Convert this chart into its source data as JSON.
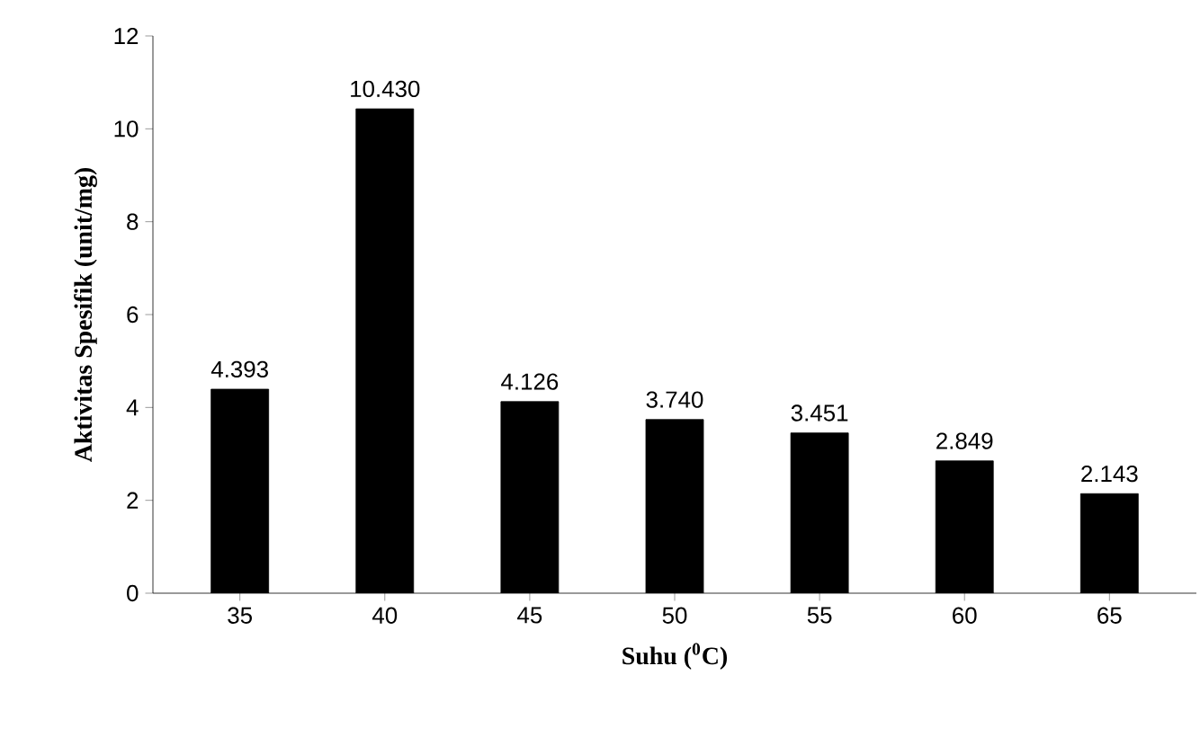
{
  "chart_data": {
    "type": "bar",
    "xlabel": "Suhu ($^{0}$C)",
    "ylabel": "Aktivitas Spesifik (unit/mg)",
    "categories": [
      "35",
      "40",
      "45",
      "50",
      "55",
      "60",
      "65"
    ],
    "values": [
      4.393,
      10.43,
      4.126,
      3.74,
      3.451,
      2.849,
      2.143
    ],
    "value_labels": [
      "4.393",
      "10.430",
      "4.126",
      "3.740",
      "3.451",
      "2.849",
      "2.143"
    ],
    "color": "#000000",
    "ylim": [
      0,
      12
    ],
    "yticks": [
      0,
      2,
      4,
      6,
      8,
      10,
      12
    ]
  }
}
